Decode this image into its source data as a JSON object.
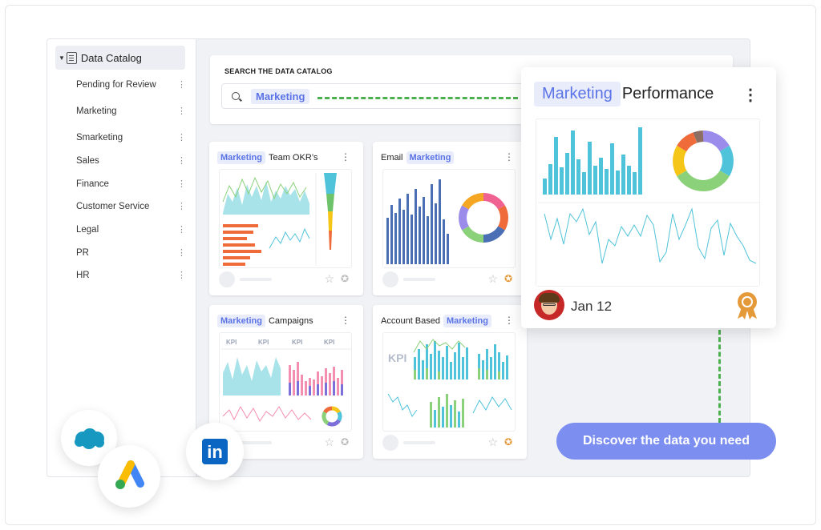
{
  "sidebar": {
    "header": "Data Catalog",
    "items": [
      {
        "label": "Pending for Review"
      },
      {
        "label": "Marketing"
      },
      {
        "label": "Smarketing"
      },
      {
        "label": "Sales"
      },
      {
        "label": "Finance"
      },
      {
        "label": "Customer Service"
      },
      {
        "label": "Legal"
      },
      {
        "label": "PR"
      },
      {
        "label": "HR"
      }
    ]
  },
  "search": {
    "title": "SEARCH THE DATA CATALOG",
    "tag": "Marketing"
  },
  "cards": [
    {
      "tag": "Marketing",
      "title": "Team OKR’s"
    },
    {
      "prefix": "Email",
      "tag": "Marketing"
    },
    {
      "tag": "Marketing",
      "title": "Campaigns"
    },
    {
      "prefix": "Account Based",
      "tag": "Marketing"
    }
  ],
  "card_kpi": "KPI",
  "featured": {
    "tag": "Marketing",
    "title": "Performance",
    "date": "Jan 12"
  },
  "cta": "Discover the data you need",
  "integrations": [
    "salesforce-icon",
    "google-ads-icon",
    "linkedin-icon"
  ],
  "linkedin_text": "in",
  "colors": {
    "accent": "#5b74e6",
    "accent_bg": "#e9ecfb",
    "cta": "#7c8ff0",
    "teal": "#4fc3d9",
    "connector": "#4cb050"
  }
}
